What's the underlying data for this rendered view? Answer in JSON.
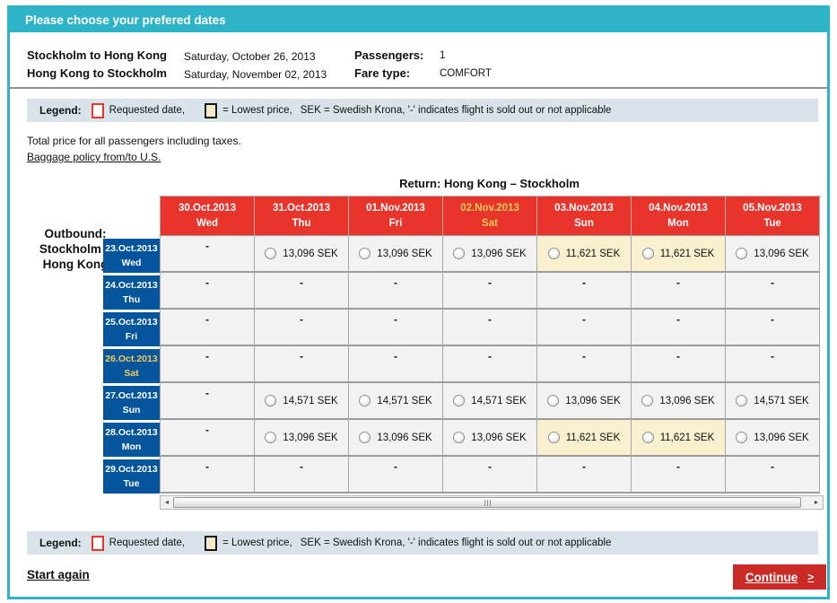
{
  "colors": {
    "teal": "#2FB3C9",
    "red": "#E9342B",
    "button_red": "#CB2B26",
    "blue": "#05559C",
    "gold": "#F2CB5C",
    "beige": "#F5E8C5",
    "beige_cell": "#F8F0CE",
    "cell_bg": "#F2F2F2",
    "legend_bar_bg": "#D8E4EA"
  },
  "icons": {
    "scroll_left_icon": "◂",
    "scroll_right_icon": "▸"
  },
  "header": {
    "title": "Please choose your prefered dates"
  },
  "trip": {
    "legs": [
      {
        "route": "Stockholm to Hong Kong",
        "date": "Saturday, October 26, 2013"
      },
      {
        "route": "Hong Kong to Stockholm",
        "date": "Saturday, November 02, 2013"
      }
    ],
    "passengers_label": "Passengers:",
    "passengers_value": "1",
    "fare_type_label": "Fare type:",
    "fare_type_value": "COMFORT"
  },
  "legend": {
    "label": "Legend:",
    "requested_text": "Requested date,",
    "lowest_text": "= Lowest price,",
    "note_text": "SEK  = Swedish Krona, '-' indicates flight is sold out or not applicable"
  },
  "notes": {
    "total_price": "Total price for all passengers including taxes.",
    "baggage_link": "Baggage policy from/to U.S."
  },
  "matrix": {
    "return_title": "Return: Hong Kong – Stockholm",
    "outbound_line1": "Outbound:",
    "outbound_line2": "Stockholm –",
    "outbound_line3": "Hong Kong",
    "columns": [
      {
        "date": "30.Oct.2013",
        "day": "Wed",
        "requested": false
      },
      {
        "date": "31.Oct.2013",
        "day": "Thu",
        "requested": false
      },
      {
        "date": "01.Nov.2013",
        "day": "Fri",
        "requested": false
      },
      {
        "date": "02.Nov.2013",
        "day": "Sat",
        "requested": true
      },
      {
        "date": "03.Nov.2013",
        "day": "Sun",
        "requested": false
      },
      {
        "date": "04.Nov.2013",
        "day": "Mon",
        "requested": false
      },
      {
        "date": "05.Nov.2013",
        "day": "Tue",
        "requested": false
      }
    ],
    "rows": [
      {
        "date": "23.Oct.2013",
        "day": "Wed",
        "requested": false,
        "cells": [
          {
            "v": "-"
          },
          {
            "v": "13,096 SEK"
          },
          {
            "v": "13,096 SEK"
          },
          {
            "v": "13,096 SEK"
          },
          {
            "v": "11,621 SEK",
            "lowest": true
          },
          {
            "v": "11,621 SEK",
            "lowest": true
          },
          {
            "v": "13,096 SEK"
          }
        ]
      },
      {
        "date": "24.Oct.2013",
        "day": "Thu",
        "requested": false,
        "cells": [
          {
            "v": "-"
          },
          {
            "v": "-"
          },
          {
            "v": "-"
          },
          {
            "v": "-"
          },
          {
            "v": "-"
          },
          {
            "v": "-"
          },
          {
            "v": "-"
          }
        ]
      },
      {
        "date": "25.Oct.2013",
        "day": "Fri",
        "requested": false,
        "cells": [
          {
            "v": "-"
          },
          {
            "v": "-"
          },
          {
            "v": "-"
          },
          {
            "v": "-"
          },
          {
            "v": "-"
          },
          {
            "v": "-"
          },
          {
            "v": "-"
          }
        ]
      },
      {
        "date": "26.Oct.2013",
        "day": "Sat",
        "requested": true,
        "cells": [
          {
            "v": "-"
          },
          {
            "v": "-"
          },
          {
            "v": "-"
          },
          {
            "v": "-"
          },
          {
            "v": "-"
          },
          {
            "v": "-"
          },
          {
            "v": "-"
          }
        ]
      },
      {
        "date": "27.Oct.2013",
        "day": "Sun",
        "requested": false,
        "cells": [
          {
            "v": "-"
          },
          {
            "v": "14,571 SEK"
          },
          {
            "v": "14,571 SEK"
          },
          {
            "v": "14,571 SEK"
          },
          {
            "v": "13,096 SEK"
          },
          {
            "v": "13,096 SEK"
          },
          {
            "v": "14,571 SEK"
          }
        ]
      },
      {
        "date": "28.Oct.2013",
        "day": "Mon",
        "requested": false,
        "cells": [
          {
            "v": "-"
          },
          {
            "v": "13,096 SEK"
          },
          {
            "v": "13,096 SEK"
          },
          {
            "v": "13,096 SEK"
          },
          {
            "v": "11,621 SEK",
            "lowest": true
          },
          {
            "v": "11,621 SEK",
            "lowest": true
          },
          {
            "v": "13,096 SEK"
          }
        ]
      },
      {
        "date": "29.Oct.2013",
        "day": "Tue",
        "requested": false,
        "cells": [
          {
            "v": "-"
          },
          {
            "v": "-"
          },
          {
            "v": "-"
          },
          {
            "v": "-"
          },
          {
            "v": "-"
          },
          {
            "v": "-"
          },
          {
            "v": "-"
          }
        ]
      }
    ]
  },
  "footer": {
    "start_again": "Start again",
    "continue_label": "Continue",
    "continue_arrow": ">"
  }
}
